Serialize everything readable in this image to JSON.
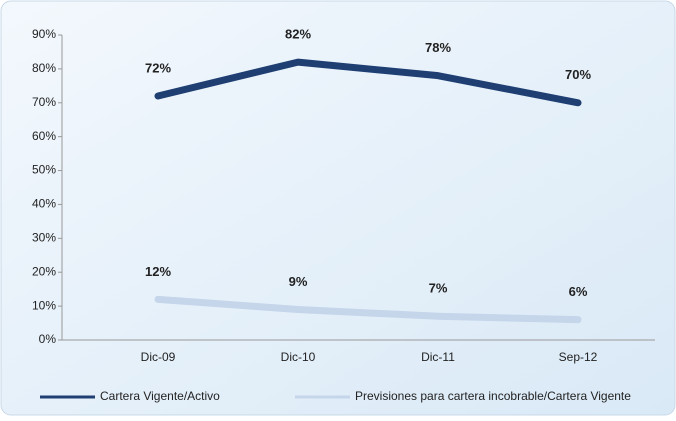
{
  "chart_data": {
    "type": "line",
    "categories": [
      "Dic-09",
      "Dic-10",
      "Dic-11",
      "Sep-12"
    ],
    "series": [
      {
        "name": "Cartera Vigente/Activo",
        "color": "#1f3f73",
        "values": [
          72,
          82,
          78,
          70
        ],
        "value_labels": [
          "72%",
          "82%",
          "78%",
          "70%"
        ]
      },
      {
        "name": "Previsiones para cartera incobrable/Cartera Vigente",
        "color": "#c5d5ea",
        "values": [
          12,
          9,
          7,
          6
        ],
        "value_labels": [
          "12%",
          "9%",
          "7%",
          "6%"
        ]
      }
    ],
    "ylim": [
      0,
      90
    ],
    "yticks": [
      {
        "value": 0,
        "label": "0%"
      },
      {
        "value": 10,
        "label": "10%"
      },
      {
        "value": 20,
        "label": "20%"
      },
      {
        "value": 30,
        "label": "30%"
      },
      {
        "value": 40,
        "label": "40%"
      },
      {
        "value": 50,
        "label": "50%"
      },
      {
        "value": 60,
        "label": "60%"
      },
      {
        "value": 70,
        "label": "70%"
      },
      {
        "value": 80,
        "label": "80%"
      },
      {
        "value": 90,
        "label": "90%"
      }
    ],
    "legend": "bottom"
  }
}
